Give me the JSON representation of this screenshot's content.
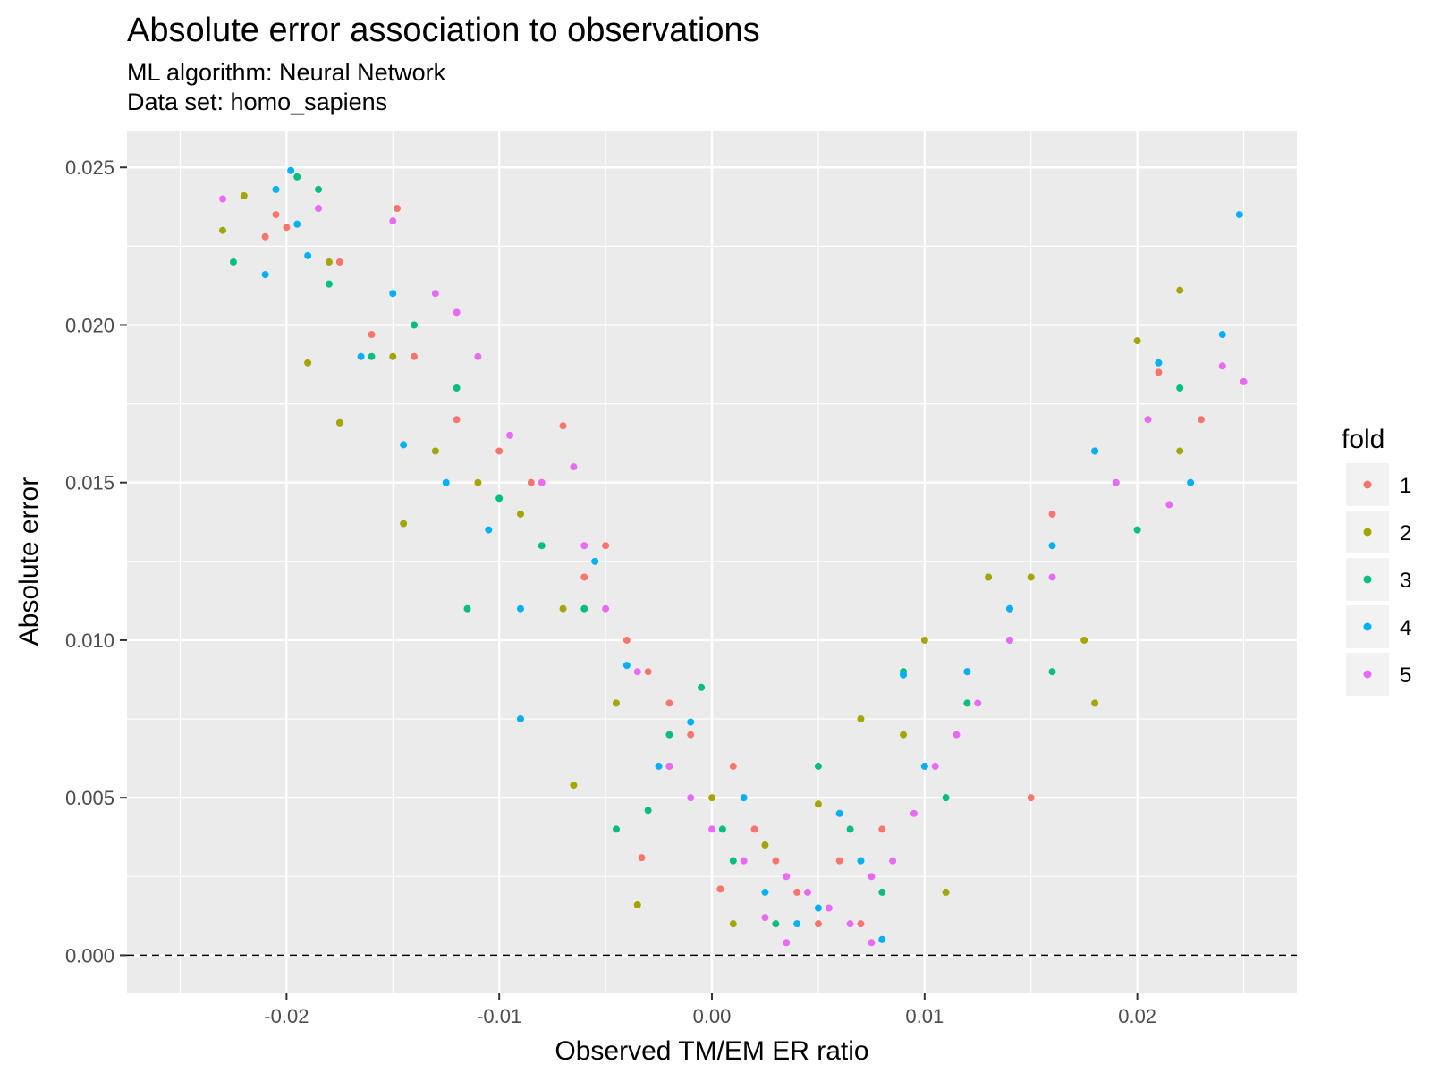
{
  "chart_data": {
    "type": "scatter",
    "title": "Absolute error association to observations",
    "subtitle_lines": [
      "ML algorithm: Neural Network",
      "Data set: homo_sapiens"
    ],
    "xlabel": "Observed TM/EM ER ratio",
    "ylabel": "Absolute error",
    "xlim": [
      -0.0275,
      0.0275
    ],
    "ylim": [
      -0.00118,
      0.02617
    ],
    "x_ticks": [
      -0.02,
      -0.01,
      0.0,
      0.01,
      0.02
    ],
    "x_tick_labels": [
      "-0.02",
      "-0.01",
      "0.00",
      "0.01",
      "0.02"
    ],
    "y_ticks": [
      0.0,
      0.005,
      0.01,
      0.015,
      0.02,
      0.025
    ],
    "y_tick_labels": [
      "0.000",
      "0.005",
      "0.010",
      "0.015",
      "0.020",
      "0.025"
    ],
    "reference_line": {
      "y": 0.0,
      "style": "dashed"
    },
    "grid": true,
    "background": "#ebebeb",
    "legend": {
      "title": "fold",
      "position": "right"
    },
    "series": [
      {
        "name": "1",
        "color": "#F8766D",
        "points": [
          [
            -0.0205,
            0.0235
          ],
          [
            -0.021,
            0.0228
          ],
          [
            -0.02,
            0.0231
          ],
          [
            -0.0175,
            0.022
          ],
          [
            -0.016,
            0.0197
          ],
          [
            -0.0148,
            0.0237
          ],
          [
            -0.014,
            0.019
          ],
          [
            -0.012,
            0.017
          ],
          [
            -0.01,
            0.016
          ],
          [
            -0.0085,
            0.015
          ],
          [
            -0.007,
            0.0168
          ],
          [
            -0.006,
            0.012
          ],
          [
            -0.005,
            0.013
          ],
          [
            -0.004,
            0.01
          ],
          [
            -0.003,
            0.009
          ],
          [
            -0.002,
            0.008
          ],
          [
            -0.001,
            0.007
          ],
          [
            0.001,
            0.006
          ],
          [
            0.002,
            0.004
          ],
          [
            0.003,
            0.003
          ],
          [
            0.004,
            0.002
          ],
          [
            0.005,
            0.001
          ],
          [
            0.006,
            0.003
          ],
          [
            0.008,
            0.004
          ],
          [
            0.01,
            0.006
          ],
          [
            0.012,
            0.009
          ],
          [
            0.014,
            0.011
          ],
          [
            0.016,
            0.014
          ],
          [
            0.018,
            0.016
          ],
          [
            0.021,
            0.0185
          ],
          [
            0.023,
            0.017
          ],
          [
            -0.0033,
            0.0031
          ],
          [
            0.0004,
            0.0021
          ],
          [
            0.007,
            0.001
          ],
          [
            0.015,
            0.005
          ]
        ]
      },
      {
        "name": "2",
        "color": "#A3A500",
        "points": [
          [
            -0.023,
            0.023
          ],
          [
            -0.022,
            0.0241
          ],
          [
            -0.018,
            0.022
          ],
          [
            -0.019,
            0.0188
          ],
          [
            -0.0175,
            0.0169
          ],
          [
            -0.015,
            0.019
          ],
          [
            -0.013,
            0.016
          ],
          [
            -0.011,
            0.015
          ],
          [
            -0.009,
            0.014
          ],
          [
            -0.007,
            0.011
          ],
          [
            -0.0065,
            0.0054
          ],
          [
            -0.0045,
            0.008
          ],
          [
            -0.0035,
            0.0016
          ],
          [
            -0.002,
            0.006
          ],
          [
            0.0,
            0.005
          ],
          [
            0.001,
            0.001
          ],
          [
            0.0025,
            0.0035
          ],
          [
            0.005,
            0.0048
          ],
          [
            0.009,
            0.007
          ],
          [
            0.01,
            0.01
          ],
          [
            0.013,
            0.012
          ],
          [
            0.015,
            0.012
          ],
          [
            0.0175,
            0.01
          ],
          [
            0.018,
            0.008
          ],
          [
            0.02,
            0.0195
          ],
          [
            0.022,
            0.0211
          ],
          [
            0.022,
            0.016
          ],
          [
            -0.0145,
            0.0137
          ],
          [
            0.011,
            0.002
          ],
          [
            0.007,
            0.0075
          ]
        ]
      },
      {
        "name": "3",
        "color": "#00BF7D",
        "points": [
          [
            -0.0225,
            0.022
          ],
          [
            -0.0195,
            0.0247
          ],
          [
            -0.0185,
            0.0243
          ],
          [
            -0.018,
            0.0213
          ],
          [
            -0.016,
            0.019
          ],
          [
            -0.014,
            0.02
          ],
          [
            -0.012,
            0.018
          ],
          [
            -0.0115,
            0.011
          ],
          [
            -0.01,
            0.0145
          ],
          [
            -0.008,
            0.013
          ],
          [
            -0.006,
            0.011
          ],
          [
            -0.0045,
            0.004
          ],
          [
            -0.002,
            0.007
          ],
          [
            -0.0005,
            0.0085
          ],
          [
            0.0005,
            0.004
          ],
          [
            0.003,
            0.001
          ],
          [
            0.005,
            0.006
          ],
          [
            0.008,
            0.002
          ],
          [
            0.009,
            0.009
          ],
          [
            0.011,
            0.005
          ],
          [
            0.012,
            0.008
          ],
          [
            0.014,
            0.01
          ],
          [
            0.016,
            0.009
          ],
          [
            0.02,
            0.0135
          ],
          [
            0.022,
            0.018
          ],
          [
            -0.003,
            0.0046
          ],
          [
            0.001,
            0.003
          ],
          [
            0.0065,
            0.004
          ]
        ]
      },
      {
        "name": "4",
        "color": "#00B0F6",
        "points": [
          [
            -0.0198,
            0.0249
          ],
          [
            -0.0195,
            0.0232
          ],
          [
            -0.021,
            0.0216
          ],
          [
            -0.019,
            0.0222
          ],
          [
            -0.0165,
            0.019
          ],
          [
            -0.015,
            0.021
          ],
          [
            -0.0145,
            0.0162
          ],
          [
            -0.0125,
            0.015
          ],
          [
            -0.0105,
            0.0135
          ],
          [
            -0.009,
            0.011
          ],
          [
            -0.009,
            0.0075
          ],
          [
            -0.0055,
            0.0125
          ],
          [
            -0.004,
            0.0092
          ],
          [
            -0.0025,
            0.006
          ],
          [
            -0.001,
            0.0074
          ],
          [
            0.0015,
            0.005
          ],
          [
            0.0025,
            0.002
          ],
          [
            0.004,
            0.001
          ],
          [
            0.006,
            0.0045
          ],
          [
            0.007,
            0.003
          ],
          [
            0.009,
            0.0089
          ],
          [
            0.01,
            0.006
          ],
          [
            0.012,
            0.009
          ],
          [
            0.014,
            0.011
          ],
          [
            0.016,
            0.013
          ],
          [
            0.018,
            0.016
          ],
          [
            0.021,
            0.0188
          ],
          [
            0.0225,
            0.015
          ],
          [
            0.024,
            0.0197
          ],
          [
            0.0248,
            0.0235
          ],
          [
            -0.0205,
            0.0243
          ],
          [
            0.008,
            0.0005
          ],
          [
            0.005,
            0.0015
          ]
        ]
      },
      {
        "name": "5",
        "color": "#E76BF3",
        "points": [
          [
            -0.023,
            0.024
          ],
          [
            -0.0185,
            0.0237
          ],
          [
            -0.015,
            0.0233
          ],
          [
            -0.013,
            0.021
          ],
          [
            -0.012,
            0.0204
          ],
          [
            -0.011,
            0.019
          ],
          [
            -0.0095,
            0.0165
          ],
          [
            -0.008,
            0.015
          ],
          [
            -0.0065,
            0.0155
          ],
          [
            -0.006,
            0.013
          ],
          [
            -0.005,
            0.011
          ],
          [
            -0.0035,
            0.009
          ],
          [
            -0.002,
            0.006
          ],
          [
            -0.001,
            0.005
          ],
          [
            0.0,
            0.004
          ],
          [
            0.0015,
            0.003
          ],
          [
            0.0025,
            0.0012
          ],
          [
            0.0035,
            0.0025
          ],
          [
            0.0045,
            0.002
          ],
          [
            0.0055,
            0.0015
          ],
          [
            0.0065,
            0.001
          ],
          [
            0.0075,
            0.0025
          ],
          [
            0.0085,
            0.003
          ],
          [
            0.0095,
            0.0045
          ],
          [
            0.0105,
            0.006
          ],
          [
            0.0115,
            0.007
          ],
          [
            0.0125,
            0.008
          ],
          [
            0.014,
            0.01
          ],
          [
            0.016,
            0.012
          ],
          [
            0.019,
            0.015
          ],
          [
            0.0205,
            0.017
          ],
          [
            0.0215,
            0.0143
          ],
          [
            0.024,
            0.0187
          ],
          [
            0.025,
            0.0182
          ],
          [
            0.0075,
            0.0004
          ],
          [
            0.0035,
            0.0004
          ]
        ]
      }
    ]
  }
}
